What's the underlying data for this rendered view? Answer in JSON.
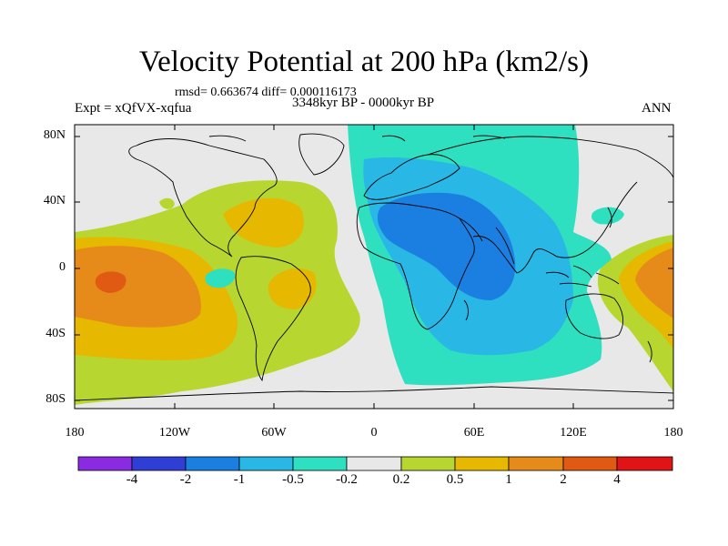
{
  "title": "Velocity Potential at 200 hPa (km2/s)",
  "stats": "rmsd= 0.663674 diff= 0.000116173",
  "experiment": "Expt = xQfVX-xqfua",
  "period": "3348kyr BP - 0000kyr BP",
  "season": "ANN",
  "y_ticks": [
    "80N",
    "40N",
    "0",
    "40S",
    "80S"
  ],
  "x_ticks": [
    "180",
    "120W",
    "60W",
    "0",
    "60E",
    "120E",
    "180"
  ],
  "colorbar": {
    "labels": [
      "-4",
      "-2",
      "-1",
      "-0.5",
      "-0.2",
      "0.2",
      "0.5",
      "1",
      "2",
      "4"
    ],
    "colors": [
      "#8a2be2",
      "#2f3fd6",
      "#1a7fe0",
      "#29b8e6",
      "#2ee0c0",
      "#e8e8e8",
      "#b8d630",
      "#e6b800",
      "#e68a1a",
      "#e05a14",
      "#e01414"
    ]
  },
  "field_colors": {
    "neutral": "#e8e8e8",
    "pos1": "#b8d630",
    "pos2": "#e6b800",
    "pos3": "#e68a1a",
    "pos4": "#e05a14",
    "neg1": "#2ee0c0",
    "neg2": "#29b8e6",
    "neg3": "#1a7fe0"
  }
}
